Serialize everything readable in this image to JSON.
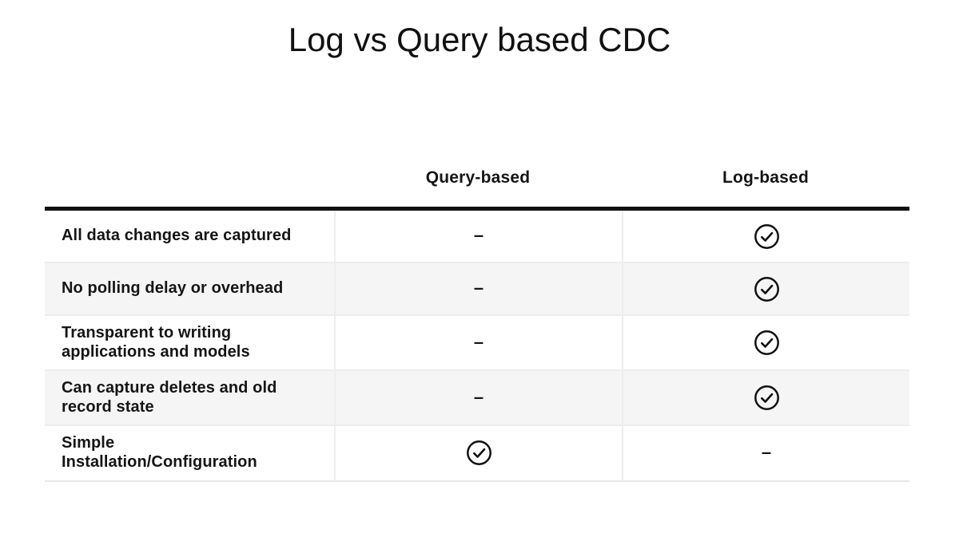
{
  "title": "Log vs Query based CDC",
  "table": {
    "columns": [
      "",
      "Query-based",
      "Log-based"
    ],
    "dash_symbol": "–",
    "check_icon_name": "check-circle-icon",
    "rows": [
      {
        "feature": "All data changes are captured",
        "query_based": "dash",
        "log_based": "check"
      },
      {
        "feature": "No polling delay or overhead",
        "query_based": "dash",
        "log_based": "check"
      },
      {
        "feature": "Transparent to writing applications and models",
        "query_based": "dash",
        "log_based": "check"
      },
      {
        "feature": "Can capture deletes and old record state",
        "query_based": "dash",
        "log_based": "check"
      },
      {
        "feature": "Simple Installation/Configuration",
        "query_based": "check",
        "log_based": "dash"
      }
    ]
  },
  "colors": {
    "text": "#151515",
    "top_border": "#111111",
    "row_alt_background": "#f5f5f5",
    "divider": "#ededed",
    "icon_stroke": "#111111"
  }
}
